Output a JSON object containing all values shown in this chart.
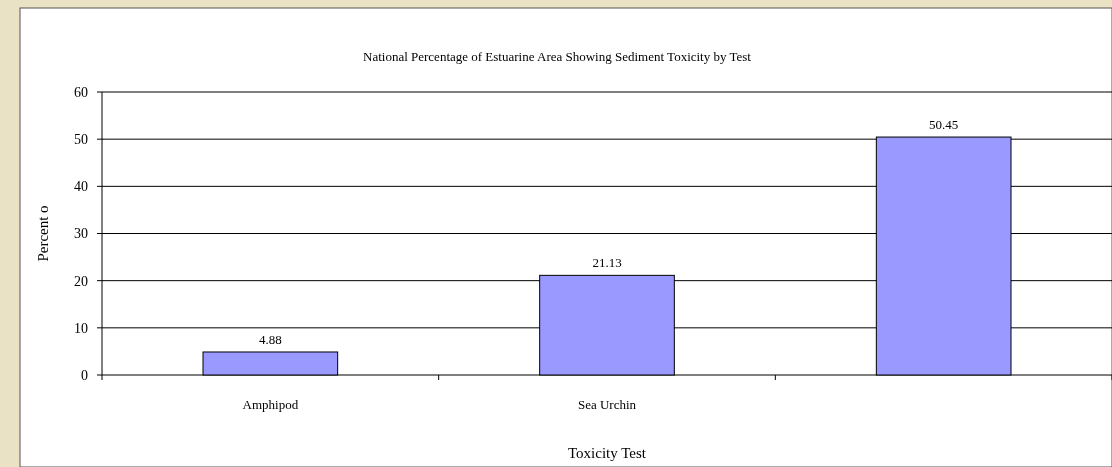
{
  "chart_data": {
    "type": "bar",
    "title": "National Percentage of Estuarine Area Showing Sediment Toxicity by Test",
    "xlabel": "Toxicity Test",
    "ylabel": "Percent o",
    "categories": [
      "Amphipod",
      "Sea Urchin",
      null
    ],
    "values": [
      4.88,
      21.13,
      50.45
    ],
    "color": "#9999ff",
    "ylim": [
      0,
      60
    ],
    "yticks": [
      0,
      10,
      20,
      30,
      40,
      50,
      60
    ],
    "grid": "y",
    "data_labels": true
  }
}
